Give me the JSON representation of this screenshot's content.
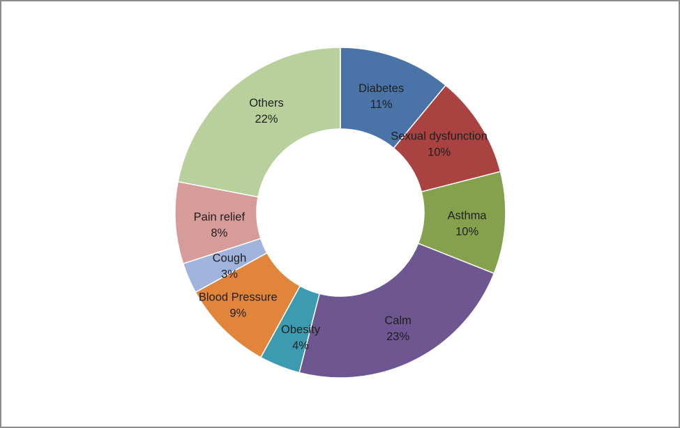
{
  "chart_data": {
    "type": "pie",
    "variant": "donut",
    "title": "",
    "legend": "none",
    "slices": [
      {
        "name": "Diabetes",
        "value": 11,
        "label": "11%",
        "color": "#4a73a8"
      },
      {
        "name": "Sexual dysfunction",
        "value": 10,
        "label": "10%",
        "color": "#a84342"
      },
      {
        "name": "Asthma",
        "value": 10,
        "label": "10%",
        "color": "#86a14d"
      },
      {
        "name": "Calm",
        "value": 23,
        "label": "23%",
        "color": "#6e5690"
      },
      {
        "name": "Obesity",
        "value": 4,
        "label": "4%",
        "color": "#3c9bb0"
      },
      {
        "name": "Blood Pressure",
        "value": 9,
        "label": "9%",
        "color": "#e0853a"
      },
      {
        "name": "Cough",
        "value": 3,
        "label": "3%",
        "color": "#9fb3dc"
      },
      {
        "name": "Pain relief",
        "value": 8,
        "label": "8%",
        "color": "#d79b9a"
      },
      {
        "name": "Others",
        "value": 22,
        "label": "22%",
        "color": "#b8d09b"
      }
    ]
  }
}
